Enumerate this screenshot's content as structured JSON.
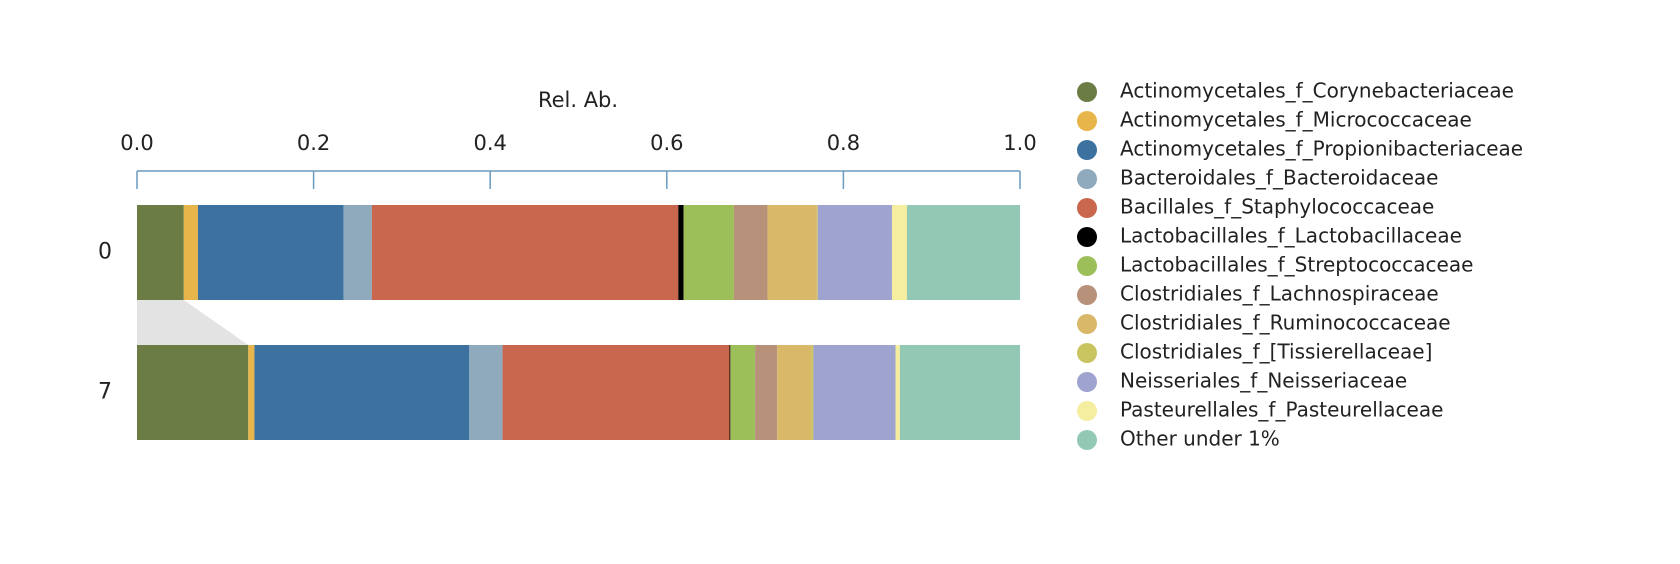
{
  "chart_data": {
    "type": "bar",
    "orientation": "horizontal",
    "stacked": true,
    "xlabel": "Rel. Ab.",
    "categories": [
      "0",
      "7"
    ],
    "xlim": [
      0,
      1
    ],
    "xticks": [
      {
        "value": 0,
        "label": "0.0"
      },
      0.2,
      0.4,
      0.6,
      0.8,
      {
        "value": 1,
        "label": "1.0"
      }
    ],
    "series": [
      {
        "name": "Actinomycetales_f_Corynebacteriaceae",
        "color": "#6b7d45",
        "values": [
          0.053,
          0.126
        ]
      },
      {
        "name": "Actinomycetales_f_Micrococcaceae",
        "color": "#e8b54a",
        "values": [
          0.016,
          0.007
        ]
      },
      {
        "name": "Actinomycetales_f_Propionibacteriaceae",
        "color": "#3d72a0",
        "values": [
          0.165,
          0.243
        ]
      },
      {
        "name": "Bacteroidales_f_Bacteroidaceae",
        "color": "#8fa9bd",
        "values": [
          0.032,
          0.038
        ]
      },
      {
        "name": "Bacillales_f_Staphylococcaceae",
        "color": "#c8664e",
        "values": [
          0.347,
          0.257
        ]
      },
      {
        "name": "Lactobacillales_f_Lactobacillaceae",
        "color": "#000000",
        "values": [
          0.006,
          0.001
        ]
      },
      {
        "name": "Lactobacillales_f_Streptococcaceae",
        "color": "#9dbf5a",
        "values": [
          0.057,
          0.028
        ]
      },
      {
        "name": "Clostridiales_f_Lachnospiraceae",
        "color": "#b8917a",
        "values": [
          0.038,
          0.025
        ]
      },
      {
        "name": "Clostridiales_f_Ruminococcaceae",
        "color": "#d9b86a",
        "values": [
          0.056,
          0.039
        ]
      },
      {
        "name": "Clostridiales_f_[Tissierellaceae]",
        "color": "#c9c45f",
        "values": [
          0.001,
          0.002
        ]
      },
      {
        "name": "Neisseriales_f_Neisseriaceae",
        "color": "#9fa3cf",
        "values": [
          0.084,
          0.093
        ]
      },
      {
        "name": "Pasteurellales_f_Pasteurellaceae",
        "color": "#f5eda0",
        "values": [
          0.017,
          0.005
        ]
      },
      {
        "name": "Other under 1%",
        "color": "#93c8b5",
        "values": [
          0.128,
          0.136
        ]
      }
    ]
  }
}
